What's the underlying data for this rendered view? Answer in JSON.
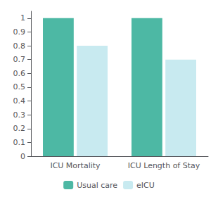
{
  "chart_data": {
    "type": "bar",
    "categories": [
      "ICU Mortality",
      "ICU Length of Stay"
    ],
    "series": [
      {
        "name": "Usual care",
        "color": "#4db8a4",
        "values": [
          1.0,
          1.0
        ]
      },
      {
        "name": "eICU",
        "color": "#c8eaf0",
        "values": [
          0.8,
          0.7
        ]
      }
    ],
    "ylim": [
      0,
      1.05
    ],
    "yticks": [
      0,
      0.1,
      0.2,
      0.3,
      0.4,
      0.5,
      0.6,
      0.7,
      0.8,
      0.9,
      1
    ],
    "grid": false,
    "legend": "bottom"
  }
}
